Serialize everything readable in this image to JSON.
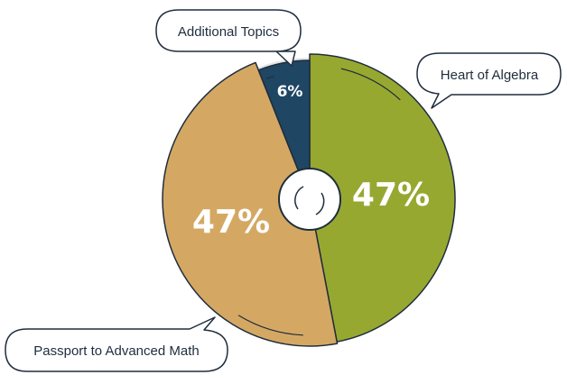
{
  "chart_data": {
    "type": "pie",
    "title": "",
    "slices": [
      {
        "label": "Heart of Algebra",
        "value": 47,
        "value_label": "47%",
        "color": "#97a831"
      },
      {
        "label": "Passport to Advanced Math",
        "value": 47,
        "value_label": "47%",
        "color": "#d4a863"
      },
      {
        "label": "Additional Topics",
        "value": 6,
        "value_label": "6%",
        "color": "#1f4663"
      }
    ],
    "outline_color": "#1f2d3d",
    "center_hole": true
  }
}
